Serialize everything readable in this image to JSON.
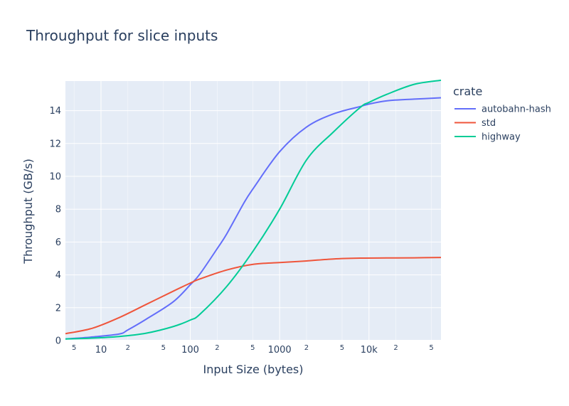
{
  "chart_data": {
    "type": "line",
    "title": "Throughput for slice inputs",
    "xlabel": "Input Size (bytes)",
    "ylabel": "Throughput (GB/s)",
    "x_scale": "log",
    "xlim": [
      4,
      64000
    ],
    "ylim": [
      0,
      15.8
    ],
    "grid": true,
    "legend_position": "right",
    "legend_title": "crate",
    "x_major_ticks": [
      {
        "value": 10,
        "label": "10"
      },
      {
        "value": 100,
        "label": "100"
      },
      {
        "value": 1000,
        "label": "1000"
      },
      {
        "value": 10000,
        "label": "10k"
      }
    ],
    "x_minor_ticks": [
      {
        "value": 5,
        "label": "5"
      },
      {
        "value": 20,
        "label": "2"
      },
      {
        "value": 50,
        "label": "5"
      },
      {
        "value": 200,
        "label": "2"
      },
      {
        "value": 500,
        "label": "5"
      },
      {
        "value": 2000,
        "label": "2"
      },
      {
        "value": 5000,
        "label": "5"
      },
      {
        "value": 20000,
        "label": "2"
      },
      {
        "value": 50000,
        "label": "5"
      }
    ],
    "y_ticks": [
      {
        "value": 0,
        "label": "0"
      },
      {
        "value": 2,
        "label": "2"
      },
      {
        "value": 4,
        "label": "4"
      },
      {
        "value": 6,
        "label": "6"
      },
      {
        "value": 8,
        "label": "8"
      },
      {
        "value": 10,
        "label": "10"
      },
      {
        "value": 12,
        "label": "12"
      },
      {
        "value": 14,
        "label": "14"
      }
    ],
    "series": [
      {
        "name": "autobahn-hash",
        "color": "#636efa",
        "x": [
          4,
          8,
          16,
          20,
          32,
          64,
          100,
          128,
          200,
          256,
          400,
          512,
          1000,
          2000,
          4000,
          8000,
          10000,
          16000,
          32000,
          64000
        ],
        "y": [
          0.1,
          0.22,
          0.4,
          0.65,
          1.3,
          2.35,
          3.4,
          4.05,
          5.6,
          6.5,
          8.4,
          9.3,
          11.5,
          13.0,
          13.8,
          14.25,
          14.4,
          14.6,
          14.7,
          14.78
        ]
      },
      {
        "name": "std",
        "color": "#ef553b",
        "x": [
          4,
          8,
          16,
          32,
          64,
          100,
          128,
          256,
          512,
          1000,
          2000,
          4000,
          8000,
          16000,
          32000,
          64000
        ],
        "y": [
          0.42,
          0.75,
          1.4,
          2.2,
          3.0,
          3.5,
          3.75,
          4.3,
          4.65,
          4.75,
          4.85,
          4.97,
          5.02,
          5.03,
          5.04,
          5.06
        ]
      },
      {
        "name": "highway",
        "color": "#00cc96",
        "x": [
          4,
          8,
          16,
          32,
          64,
          100,
          128,
          256,
          512,
          1000,
          2000,
          4000,
          8000,
          10000,
          16000,
          32000,
          64000
        ],
        "y": [
          0.1,
          0.15,
          0.25,
          0.45,
          0.85,
          1.25,
          1.6,
          3.3,
          5.5,
          8.0,
          11.0,
          12.7,
          14.2,
          14.5,
          15.0,
          15.6,
          15.85
        ]
      }
    ]
  }
}
